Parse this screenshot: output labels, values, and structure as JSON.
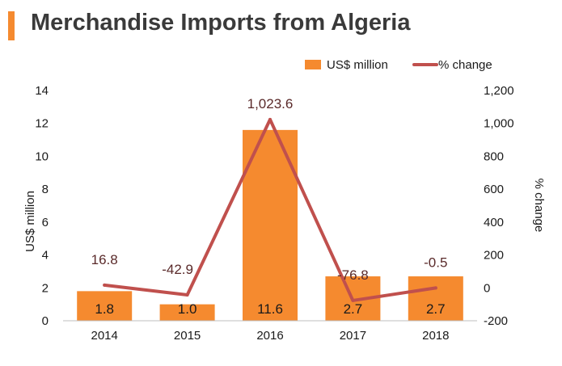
{
  "title": "Merchandise Imports from Algeria",
  "colors": {
    "bar": "#f58a2f",
    "line": "#c0504d",
    "accent": "#f58a2f"
  },
  "chart_data": {
    "type": "bar",
    "categories": [
      "2014",
      "2015",
      "2016",
      "2017",
      "2018"
    ],
    "series": [
      {
        "name": "US$ million",
        "type": "bar",
        "axis": "left",
        "values": [
          1.8,
          1.0,
          11.6,
          2.7,
          2.7
        ],
        "labels": [
          "1.8",
          "1.0",
          "11.6",
          "2.7",
          "2.7"
        ]
      },
      {
        "name": "% change",
        "type": "line",
        "axis": "right",
        "values": [
          16.8,
          -42.9,
          1023.6,
          -76.8,
          -0.5
        ],
        "labels": [
          "16.8",
          "-42.9",
          "1,023.6",
          "-76.8",
          "-0.5"
        ]
      }
    ],
    "ylabel": "US$ million",
    "ylabel_right": "% change",
    "ylim": [
      0,
      14
    ],
    "ylim_right": [
      -200,
      1200
    ],
    "yticks": [
      "0",
      "2",
      "4",
      "6",
      "8",
      "10",
      "12",
      "14"
    ],
    "yticks_right": [
      "-200",
      "0",
      "200",
      "400",
      "600",
      "800",
      "1,000",
      "1,200"
    ],
    "legend": "top-right",
    "grid": false
  }
}
